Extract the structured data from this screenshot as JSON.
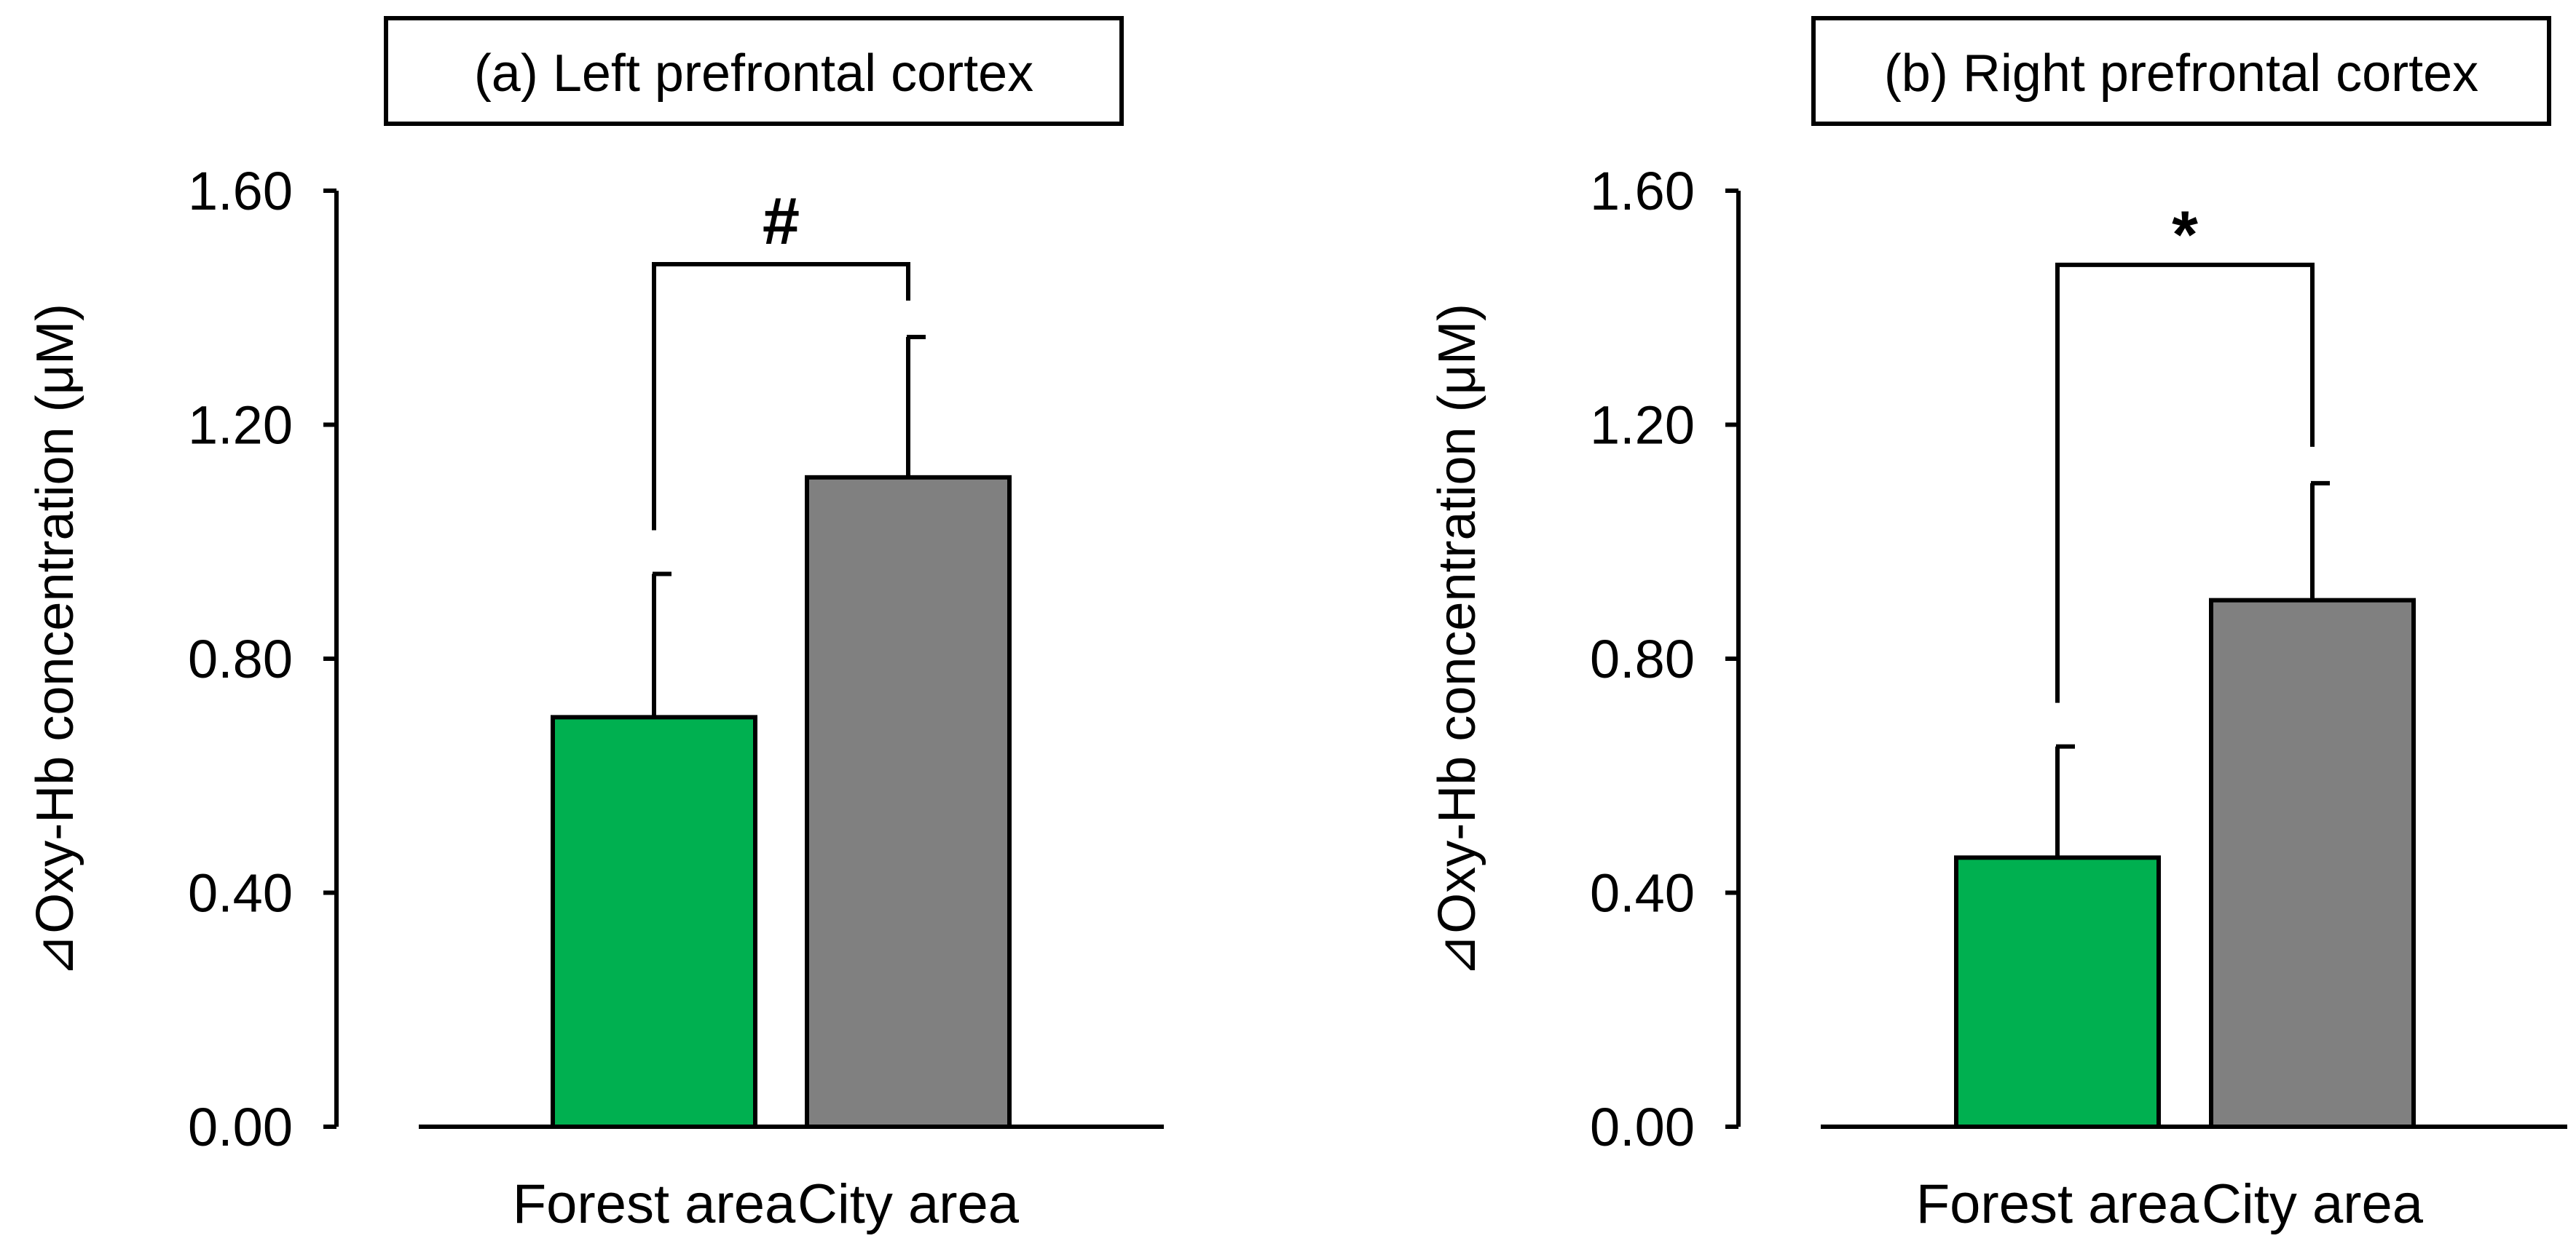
{
  "chart_data": [
    {
      "type": "bar",
      "title": "(a) Left prefrontal cortex",
      "ylabel": "⊿Oxy-Hb concentration (μM)",
      "xlabel": "",
      "categories": [
        "Forest area",
        "City area"
      ],
      "values": [
        0.7,
        1.11
      ],
      "errors": [
        0.245,
        0.24
      ],
      "colors": [
        "#00B050",
        "#808080"
      ],
      "ylim": [
        0.0,
        1.6
      ],
      "yticks": [
        "0.00",
        "0.40",
        "0.80",
        "1.20",
        "1.60"
      ],
      "significance": {
        "symbol": "#",
        "from": 0,
        "to": 1
      }
    },
    {
      "type": "bar",
      "title": "(b) Right prefrontal cortex",
      "ylabel": "⊿Oxy-Hb concentration (μM)",
      "xlabel": "",
      "categories": [
        "Forest area",
        "City area"
      ],
      "values": [
        0.46,
        0.9
      ],
      "errors": [
        0.19,
        0.2
      ],
      "colors": [
        "#00B050",
        "#808080"
      ],
      "ylim": [
        0.0,
        1.6
      ],
      "yticks": [
        "0.00",
        "0.40",
        "0.80",
        "1.20",
        "1.60"
      ],
      "significance": {
        "symbol": "*",
        "from": 0,
        "to": 1
      }
    }
  ]
}
